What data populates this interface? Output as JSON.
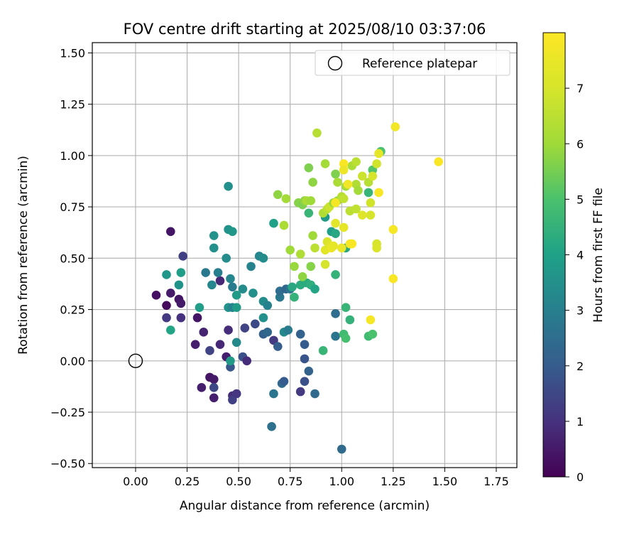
{
  "chart_data": {
    "type": "scatter",
    "title": "FOV centre drift starting at 2025/08/10 03:37:06",
    "xlabel": "Angular distance from reference (arcmin)",
    "ylabel": "Rotation from reference (arcmin)",
    "colorbar_label": "Hours from first FF file",
    "xlim": [
      -0.21,
      1.85
    ],
    "ylim": [
      -0.52,
      1.55
    ],
    "x_ticks": [
      "0.00",
      "0.25",
      "0.50",
      "0.75",
      "1.00",
      "1.25",
      "1.50",
      "1.75"
    ],
    "y_ticks": [
      "−0.50",
      "−0.25",
      "0.00",
      "0.25",
      "0.50",
      "0.75",
      "1.00",
      "1.25",
      "1.50"
    ],
    "colorbar_range": [
      0,
      8
    ],
    "colorbar_ticks": [
      "0",
      "1",
      "2",
      "3",
      "4",
      "5",
      "6",
      "7"
    ],
    "grid": true,
    "legend_position": "top-right",
    "legend": {
      "label": "Reference platepar"
    },
    "reference_point": {
      "x": 0.0,
      "y": 0.0
    },
    "colormap": "viridis",
    "points": [
      {
        "x": 0.17,
        "y": 0.63,
        "h": 0.4
      },
      {
        "x": 0.1,
        "y": 0.32,
        "h": 0.3
      },
      {
        "x": 0.15,
        "y": 0.27,
        "h": 0.2
      },
      {
        "x": 0.17,
        "y": 0.33,
        "h": 0.5
      },
      {
        "x": 0.21,
        "y": 0.3,
        "h": 0.4
      },
      {
        "x": 0.22,
        "y": 0.28,
        "h": 0.5
      },
      {
        "x": 0.15,
        "y": 0.21,
        "h": 1.2
      },
      {
        "x": 0.22,
        "y": 0.21,
        "h": 1.0
      },
      {
        "x": 0.23,
        "y": 0.51,
        "h": 1.3
      },
      {
        "x": 0.3,
        "y": 0.21,
        "h": 0.4
      },
      {
        "x": 0.29,
        "y": 0.08,
        "h": 0.6
      },
      {
        "x": 0.33,
        "y": 0.14,
        "h": 0.7
      },
      {
        "x": 0.32,
        "y": -0.13,
        "h": 0.6
      },
      {
        "x": 0.36,
        "y": -0.08,
        "h": 0.4
      },
      {
        "x": 0.38,
        "y": -0.09,
        "h": 0.5
      },
      {
        "x": 0.38,
        "y": -0.18,
        "h": 0.6
      },
      {
        "x": 0.38,
        "y": -0.13,
        "h": 1.5
      },
      {
        "x": 0.36,
        "y": 0.05,
        "h": 1.4
      },
      {
        "x": 0.41,
        "y": 0.08,
        "h": 0.8
      },
      {
        "x": 0.44,
        "y": 0.02,
        "h": 0.6
      },
      {
        "x": 0.45,
        "y": 0.15,
        "h": 0.9
      },
      {
        "x": 0.46,
        "y": -0.03,
        "h": 1.9
      },
      {
        "x": 0.47,
        "y": -0.17,
        "h": 0.9
      },
      {
        "x": 0.47,
        "y": -0.19,
        "h": 1.3
      },
      {
        "x": 0.49,
        "y": -0.16,
        "h": 1.1
      },
      {
        "x": 0.41,
        "y": 0.39,
        "h": 0.8
      },
      {
        "x": 0.52,
        "y": 0.02,
        "h": 1.7
      },
      {
        "x": 0.54,
        "y": 0.0,
        "h": 0.9
      },
      {
        "x": 0.53,
        "y": 0.16,
        "h": 1.4
      },
      {
        "x": 0.58,
        "y": 0.18,
        "h": 1.6
      },
      {
        "x": 0.62,
        "y": 0.13,
        "h": 2.1
      },
      {
        "x": 0.64,
        "y": 0.14,
        "h": 2.3
      },
      {
        "x": 0.67,
        "y": 0.1,
        "h": 1.2
      },
      {
        "x": 0.69,
        "y": 0.07,
        "h": 2.1
      },
      {
        "x": 0.67,
        "y": -0.16,
        "h": 2.7
      },
      {
        "x": 0.71,
        "y": -0.11,
        "h": 2.4
      },
      {
        "x": 0.72,
        "y": -0.1,
        "h": 2.0
      },
      {
        "x": 0.66,
        "y": -0.32,
        "h": 2.6
      },
      {
        "x": 0.8,
        "y": -0.15,
        "h": 1.2
      },
      {
        "x": 0.82,
        "y": -0.1,
        "h": 1.7
      },
      {
        "x": 0.87,
        "y": -0.16,
        "h": 2.4
      },
      {
        "x": 0.84,
        "y": -0.05,
        "h": 2.2
      },
      {
        "x": 0.82,
        "y": 0.01,
        "h": 1.8
      },
      {
        "x": 0.82,
        "y": 0.08,
        "h": 2.0
      },
      {
        "x": 0.8,
        "y": 0.13,
        "h": 2.2
      },
      {
        "x": 0.7,
        "y": 0.31,
        "h": 2.8
      },
      {
        "x": 0.7,
        "y": 0.34,
        "h": 2.5
      },
      {
        "x": 0.73,
        "y": 0.35,
        "h": 2.3
      },
      {
        "x": 0.75,
        "y": 0.35,
        "h": 2.7
      },
      {
        "x": 0.72,
        "y": 0.14,
        "h": 3.3
      },
      {
        "x": 0.74,
        "y": 0.15,
        "h": 2.9
      },
      {
        "x": 0.97,
        "y": 0.23,
        "h": 2.5
      },
      {
        "x": 0.97,
        "y": 0.12,
        "h": 2.7
      },
      {
        "x": 1.0,
        "y": -0.43,
        "h": 2.4
      },
      {
        "x": 0.15,
        "y": 0.42,
        "h": 3.7
      },
      {
        "x": 0.21,
        "y": 0.37,
        "h": 3.6
      },
      {
        "x": 0.22,
        "y": 0.43,
        "h": 3.9
      },
      {
        "x": 0.17,
        "y": 0.15,
        "h": 4.1
      },
      {
        "x": 0.31,
        "y": 0.26,
        "h": 3.9
      },
      {
        "x": 0.34,
        "y": 0.43,
        "h": 2.8
      },
      {
        "x": 0.37,
        "y": 0.37,
        "h": 3.2
      },
      {
        "x": 0.38,
        "y": 0.61,
        "h": 3.6
      },
      {
        "x": 0.38,
        "y": 0.55,
        "h": 3.5
      },
      {
        "x": 0.4,
        "y": 0.43,
        "h": 3.0
      },
      {
        "x": 0.44,
        "y": 0.5,
        "h": 3.4
      },
      {
        "x": 0.45,
        "y": 0.64,
        "h": 3.6
      },
      {
        "x": 0.47,
        "y": 0.63,
        "h": 3.7
      },
      {
        "x": 0.45,
        "y": 0.85,
        "h": 3.5
      },
      {
        "x": 0.46,
        "y": 0.4,
        "h": 3.2
      },
      {
        "x": 0.47,
        "y": 0.36,
        "h": 2.9
      },
      {
        "x": 0.45,
        "y": 0.26,
        "h": 3.6
      },
      {
        "x": 0.47,
        "y": 0.26,
        "h": 3.1
      },
      {
        "x": 0.49,
        "y": 0.32,
        "h": 3.8
      },
      {
        "x": 0.49,
        "y": 0.26,
        "h": 3.8
      },
      {
        "x": 0.49,
        "y": 0.09,
        "h": 3.3
      },
      {
        "x": 0.52,
        "y": 0.35,
        "h": 3.4
      },
      {
        "x": 0.46,
        "y": 0.0,
        "h": 3.8
      },
      {
        "x": 0.56,
        "y": 0.46,
        "h": 3.1
      },
      {
        "x": 0.57,
        "y": 0.33,
        "h": 3.5
      },
      {
        "x": 0.6,
        "y": 0.51,
        "h": 3.2
      },
      {
        "x": 0.62,
        "y": 0.5,
        "h": 3.4
      },
      {
        "x": 0.62,
        "y": 0.29,
        "h": 3.4
      },
      {
        "x": 0.64,
        "y": 0.27,
        "h": 3.1
      },
      {
        "x": 0.62,
        "y": 0.21,
        "h": 3.5
      },
      {
        "x": 0.67,
        "y": 0.67,
        "h": 4.0
      },
      {
        "x": 0.76,
        "y": 0.36,
        "h": 4.2
      },
      {
        "x": 0.77,
        "y": 0.31,
        "h": 4.5
      },
      {
        "x": 0.8,
        "y": 0.37,
        "h": 4.3
      },
      {
        "x": 0.83,
        "y": 0.38,
        "h": 4.3
      },
      {
        "x": 0.85,
        "y": 0.37,
        "h": 4.4
      },
      {
        "x": 0.87,
        "y": 0.35,
        "h": 4.1
      },
      {
        "x": 0.84,
        "y": 0.72,
        "h": 4.6
      },
      {
        "x": 0.91,
        "y": 0.05,
        "h": 4.6
      },
      {
        "x": 0.92,
        "y": 0.7,
        "h": 3.8
      },
      {
        "x": 0.95,
        "y": 0.63,
        "h": 3.9
      },
      {
        "x": 0.97,
        "y": 0.62,
        "h": 4.2
      },
      {
        "x": 0.97,
        "y": 0.42,
        "h": 4.5
      },
      {
        "x": 1.01,
        "y": 0.13,
        "h": 4.8
      },
      {
        "x": 1.02,
        "y": 0.26,
        "h": 4.6
      },
      {
        "x": 1.02,
        "y": 0.11,
        "h": 4.9
      },
      {
        "x": 1.04,
        "y": 0.2,
        "h": 4.5
      },
      {
        "x": 1.02,
        "y": 0.55,
        "h": 4.2
      },
      {
        "x": 1.13,
        "y": 0.12,
        "h": 4.8
      },
      {
        "x": 1.15,
        "y": 0.13,
        "h": 5.0
      },
      {
        "x": 1.13,
        "y": 0.82,
        "h": 4.6
      },
      {
        "x": 1.19,
        "y": 1.02,
        "h": 5.0
      },
      {
        "x": 1.15,
        "y": 0.93,
        "h": 5.1
      },
      {
        "x": 0.69,
        "y": 0.81,
        "h": 5.8
      },
      {
        "x": 0.73,
        "y": 0.79,
        "h": 6.1
      },
      {
        "x": 0.72,
        "y": 0.66,
        "h": 6.2
      },
      {
        "x": 0.75,
        "y": 0.54,
        "h": 6.0
      },
      {
        "x": 0.77,
        "y": 0.46,
        "h": 5.9
      },
      {
        "x": 0.79,
        "y": 0.77,
        "h": 5.7
      },
      {
        "x": 0.81,
        "y": 0.76,
        "h": 5.6
      },
      {
        "x": 0.82,
        "y": 0.78,
        "h": 5.8
      },
      {
        "x": 0.83,
        "y": 0.78,
        "h": 6.2
      },
      {
        "x": 0.85,
        "y": 0.78,
        "h": 6.0
      },
      {
        "x": 0.8,
        "y": 0.52,
        "h": 6.3
      },
      {
        "x": 0.81,
        "y": 0.41,
        "h": 5.8
      },
      {
        "x": 0.85,
        "y": 0.46,
        "h": 5.7
      },
      {
        "x": 0.86,
        "y": 0.61,
        "h": 6.0
      },
      {
        "x": 0.87,
        "y": 0.55,
        "h": 6.5
      },
      {
        "x": 0.84,
        "y": 0.94,
        "h": 5.6
      },
      {
        "x": 0.86,
        "y": 0.87,
        "h": 5.8
      },
      {
        "x": 0.88,
        "y": 1.11,
        "h": 6.4
      },
      {
        "x": 0.91,
        "y": 0.72,
        "h": 6.3
      },
      {
        "x": 0.92,
        "y": 0.96,
        "h": 6.1
      },
      {
        "x": 0.93,
        "y": 0.74,
        "h": 6.5
      },
      {
        "x": 0.94,
        "y": 0.75,
        "h": 6.8
      },
      {
        "x": 0.96,
        "y": 0.77,
        "h": 5.9
      },
      {
        "x": 0.97,
        "y": 0.91,
        "h": 5.6
      },
      {
        "x": 0.98,
        "y": 0.78,
        "h": 6.0
      },
      {
        "x": 0.98,
        "y": 0.87,
        "h": 6.2
      },
      {
        "x": 1.0,
        "y": 0.8,
        "h": 6.4
      },
      {
        "x": 1.01,
        "y": 0.79,
        "h": 6.6
      },
      {
        "x": 1.02,
        "y": 0.85,
        "h": 6.1
      },
      {
        "x": 1.04,
        "y": 0.73,
        "h": 6.5
      },
      {
        "x": 1.05,
        "y": 0.95,
        "h": 6.2
      },
      {
        "x": 1.07,
        "y": 0.97,
        "h": 6.5
      },
      {
        "x": 1.07,
        "y": 0.86,
        "h": 6.3
      },
      {
        "x": 1.08,
        "y": 0.83,
        "h": 6.1
      },
      {
        "x": 1.07,
        "y": 0.74,
        "h": 6.6
      },
      {
        "x": 1.1,
        "y": 0.9,
        "h": 6.8
      },
      {
        "x": 1.13,
        "y": 0.87,
        "h": 6.4
      },
      {
        "x": 1.14,
        "y": 0.77,
        "h": 6.9
      },
      {
        "x": 1.14,
        "y": 0.71,
        "h": 7.0
      },
      {
        "x": 1.17,
        "y": 0.57,
        "h": 7.0
      },
      {
        "x": 1.17,
        "y": 0.55,
        "h": 7.1
      },
      {
        "x": 1.15,
        "y": 0.9,
        "h": 7.0
      },
      {
        "x": 1.17,
        "y": 0.96,
        "h": 6.9
      },
      {
        "x": 1.1,
        "y": 0.71,
        "h": 7.2
      },
      {
        "x": 0.92,
        "y": 0.54,
        "h": 7.3
      },
      {
        "x": 0.92,
        "y": 0.47,
        "h": 7.0
      },
      {
        "x": 0.93,
        "y": 0.58,
        "h": 7.1
      },
      {
        "x": 0.94,
        "y": 0.56,
        "h": 7.2
      },
      {
        "x": 0.95,
        "y": 0.55,
        "h": 7.6
      },
      {
        "x": 0.96,
        "y": 0.56,
        "h": 7.4
      },
      {
        "x": 0.97,
        "y": 0.67,
        "h": 7.3
      },
      {
        "x": 0.97,
        "y": 0.77,
        "h": 7.8
      },
      {
        "x": 1.0,
        "y": 0.55,
        "h": 7.5
      },
      {
        "x": 1.01,
        "y": 0.65,
        "h": 7.4
      },
      {
        "x": 1.01,
        "y": 0.96,
        "h": 7.9
      },
      {
        "x": 1.01,
        "y": 0.93,
        "h": 7.6
      },
      {
        "x": 1.03,
        "y": 0.86,
        "h": 7.7
      },
      {
        "x": 1.04,
        "y": 0.57,
        "h": 7.8
      },
      {
        "x": 1.05,
        "y": 0.57,
        "h": 7.9
      },
      {
        "x": 1.14,
        "y": 0.2,
        "h": 7.8
      },
      {
        "x": 1.18,
        "y": 0.82,
        "h": 7.9
      },
      {
        "x": 1.18,
        "y": 1.01,
        "h": 7.4
      },
      {
        "x": 1.25,
        "y": 0.4,
        "h": 7.9
      },
      {
        "x": 1.25,
        "y": 0.64,
        "h": 7.8
      },
      {
        "x": 1.26,
        "y": 1.14,
        "h": 7.7
      },
      {
        "x": 1.47,
        "y": 0.97,
        "h": 7.9
      }
    ]
  }
}
